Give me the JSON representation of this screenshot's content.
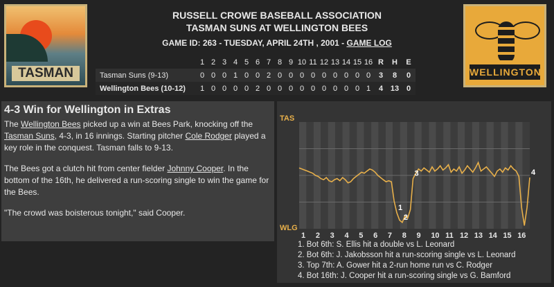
{
  "logos": {
    "left_text": "TASMAN",
    "right_text": "WELLINGTON"
  },
  "header": {
    "league": "RUSSELL CROWE BASEBALL ASSOCIATION",
    "matchup": "TASMAN SUNS AT WELLINGTON BEES",
    "game_info": "GAME ID: 263 - TUESDAY, APRIL 24TH , 2001 - ",
    "game_log": "GAME LOG"
  },
  "linescore": {
    "innings": [
      "1",
      "2",
      "3",
      "4",
      "5",
      "6",
      "7",
      "8",
      "9",
      "10",
      "11",
      "12",
      "13",
      "14",
      "15",
      "16"
    ],
    "rhe_headers": [
      "R",
      "H",
      "E"
    ],
    "teams": [
      {
        "name": "Tasman Suns (9-13)",
        "runs_by_inning": [
          "0",
          "0",
          "0",
          "1",
          "0",
          "0",
          "2",
          "0",
          "0",
          "0",
          "0",
          "0",
          "0",
          "0",
          "0",
          "0"
        ],
        "rhe": [
          "3",
          "8",
          "0"
        ]
      },
      {
        "name": "Wellington Bees (10-12)",
        "runs_by_inning": [
          "1",
          "0",
          "0",
          "0",
          "0",
          "2",
          "0",
          "0",
          "0",
          "0",
          "0",
          "0",
          "0",
          "0",
          "0",
          "1"
        ],
        "rhe": [
          "4",
          "13",
          "0"
        ]
      }
    ]
  },
  "story": {
    "headline": "4-3 Win for Wellington in Extras",
    "p1": [
      "The ",
      "Wellington Bees",
      " picked up a win at Bees Park, knocking off the ",
      "Tasman Suns",
      ", 4-3, in 16 innings. Starting pitcher ",
      "Cole Rodger",
      " played a key role in the conquest. Tasman falls to 9-13."
    ],
    "p2": [
      "The Bees got a clutch hit from center fielder ",
      "Johnny Cooper",
      ". In the bottom of the 16th, he delivered a run-scoring single to win the game for the Bees."
    ],
    "p3": "\"The crowd was boisterous tonight,\" said Cooper."
  },
  "chart_data": {
    "type": "line",
    "top_label": "TAS",
    "bottom_label": "WLG",
    "innings": [
      "1",
      "2",
      "3",
      "4",
      "5",
      "6",
      "7",
      "8",
      "9",
      "10",
      "11",
      "12",
      "13",
      "14",
      "15",
      "16"
    ],
    "ylim": [
      -50,
      50
    ],
    "values": [
      7,
      6,
      5,
      4,
      3,
      2,
      0,
      -1,
      -3,
      -4,
      -2,
      -5,
      -6,
      -4,
      -3,
      -5,
      -2,
      -4,
      -7,
      -6,
      -3,
      -1,
      1,
      3,
      2,
      4,
      6,
      5,
      3,
      0,
      -2,
      -4,
      -6,
      -5,
      -6,
      -24,
      -35,
      -42,
      -44,
      -38,
      -40,
      -32,
      -3,
      2,
      6,
      4,
      7,
      5,
      3,
      8,
      4,
      6,
      9,
      5,
      7,
      10,
      3,
      6,
      4,
      8,
      2,
      5,
      9,
      6,
      3,
      7,
      12,
      4,
      6,
      8,
      5,
      2,
      -1,
      4,
      6,
      3,
      7,
      5,
      9,
      6,
      4,
      -1,
      -30,
      -47,
      -30,
      -2
    ],
    "markers": [
      {
        "label": "1",
        "index": 36
      },
      {
        "label": "2",
        "index": 38
      },
      {
        "label": "3",
        "index": 42
      },
      {
        "label": "4",
        "index": 85
      }
    ],
    "plays": [
      "1. Bot 6th: S. Ellis hit a double vs L. Leonard",
      "2. Bot 6th: J. Jakobsson hit a run-scoring single vs L. Leonard",
      "3. Top 7th: A. Gower hit a 2-run home run vs C. Rodger",
      "4. Bot 16th: J. Cooper hit a run-scoring single vs G. Bamford"
    ],
    "line_color": "#e8b04a",
    "colors": {
      "background": "#343434",
      "band_a": "#4a4a4a",
      "band_b": "#3c3c3c"
    }
  }
}
